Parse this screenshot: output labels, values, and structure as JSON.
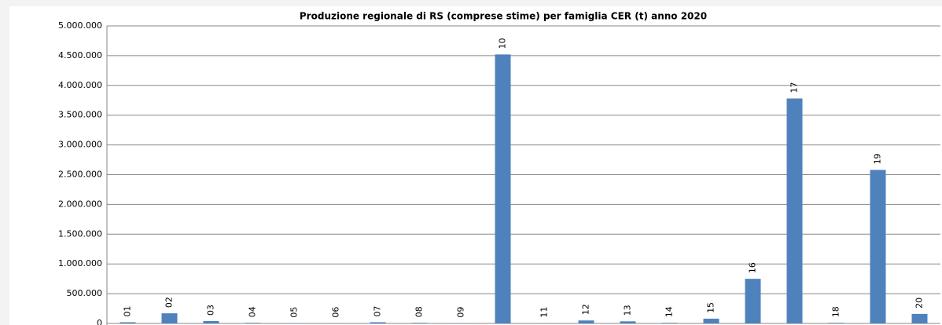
{
  "chart_data": {
    "type": "bar",
    "title": "Produzione regionale di RS (comprese stime) per famiglia CER (t)    anno 2020",
    "categories": [
      "01",
      "02",
      "03",
      "04",
      "05",
      "06",
      "07",
      "08",
      "09",
      "10",
      "11",
      "12",
      "13",
      "14",
      "15",
      "16",
      "17",
      "18",
      "19",
      "20"
    ],
    "values": [
      20000,
      170000,
      40000,
      10000,
      5000,
      5000,
      20000,
      10000,
      5000,
      4520000,
      5000,
      50000,
      35000,
      10000,
      80000,
      750000,
      3780000,
      10000,
      2580000,
      160000
    ],
    "color": "#4f81bd",
    "ylim": [
      0,
      5000000
    ],
    "yticks": [
      0,
      {
        "value": 500000,
        "label": "500.000"
      },
      {
        "value": 1000000,
        "label": "1.000.000"
      },
      {
        "value": 1500000,
        "label": "1.500.000"
      },
      {
        "value": 2000000,
        "label": "2.000.000"
      },
      {
        "value": 2500000,
        "label": "2.500.000"
      },
      {
        "value": 3000000,
        "label": "3.000.000"
      },
      {
        "value": 3500000,
        "label": "3.500.000"
      },
      {
        "value": 4000000,
        "label": "4.000.000"
      },
      {
        "value": 4500000,
        "label": "4.500.000"
      },
      {
        "value": 5000000,
        "label": "5.000.000"
      }
    ],
    "grid": true
  }
}
